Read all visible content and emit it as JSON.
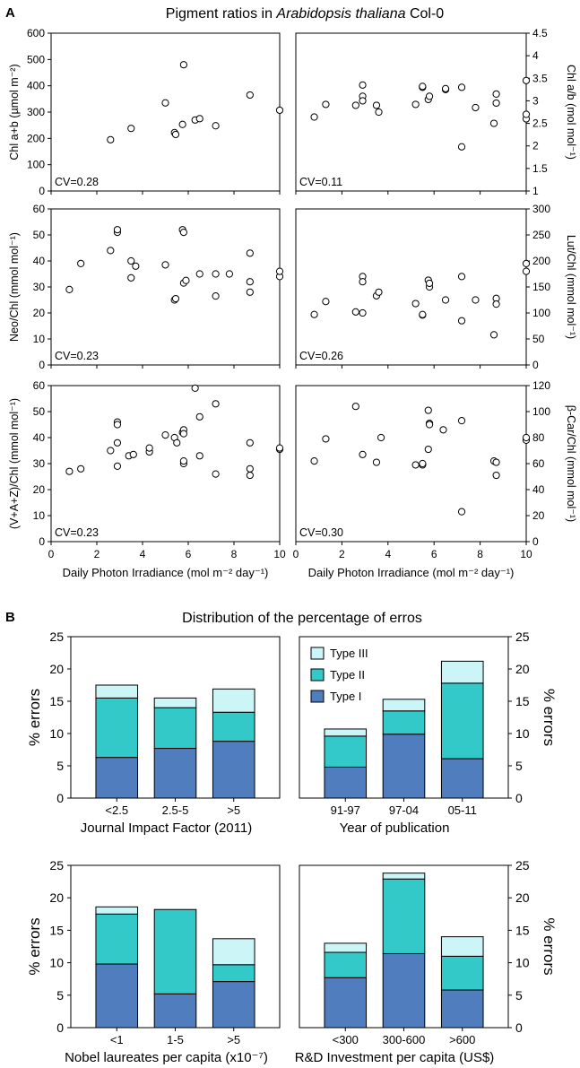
{
  "panel_a": {
    "letter": "A",
    "title_pre": "Pigment ratios in ",
    "title_italic": "Arabidopsis thaliana",
    "title_post": " Col-0",
    "xlabel": "Daily Photon Irradiance (mol m⁻² day⁻¹)"
  },
  "panel_b": {
    "letter": "B",
    "title": "Distribution of the percentage of erros",
    "ylabel": "% errors",
    "legend": [
      "Type III",
      "Type II",
      "Type I"
    ]
  },
  "colors": {
    "type1": "#4f7dbd",
    "type2": "#33c9c9",
    "type3": "#ccf5f8"
  },
  "chart_data": [
    {
      "type": "scatter",
      "ylabel": "Chl a+b (µmol m⁻²)",
      "xlim": [
        0,
        10
      ],
      "ylim": [
        0,
        600
      ],
      "yticks": [
        0,
        100,
        200,
        300,
        400,
        500,
        600
      ],
      "cv": "CV=0.28",
      "x": [
        2.6,
        3.5,
        5.0,
        5.4,
        5.45,
        5.75,
        5.8,
        6.3,
        6.5,
        7.2,
        8.7,
        10.0
      ],
      "y": [
        195,
        238,
        335,
        222,
        215,
        253,
        480,
        270,
        275,
        248,
        365,
        307
      ]
    },
    {
      "type": "scatter",
      "ylabel": "Chl a/b (mol mol⁻¹)",
      "xlim": [
        0,
        10
      ],
      "ylim": [
        1,
        4.5
      ],
      "yticks": [
        1,
        1.5,
        2,
        2.5,
        3,
        3.5,
        4,
        4.5
      ],
      "cv": "CV=0.11",
      "x": [
        0.8,
        1.3,
        2.6,
        2.9,
        2.9,
        2.9,
        3.5,
        3.6,
        5.2,
        5.5,
        5.5,
        5.75,
        5.8,
        6.5,
        6.5,
        7.2,
        7.2,
        7.8,
        8.6,
        8.7,
        8.7,
        10.0,
        10.0,
        10.0
      ],
      "y": [
        2.64,
        2.92,
        2.9,
        3.35,
        3.1,
        3.0,
        2.9,
        2.75,
        2.92,
        3.3,
        3.32,
        3.03,
        3.1,
        3.25,
        3.27,
        3.3,
        1.98,
        2.85,
        2.5,
        3.15,
        2.95,
        3.45,
        2.6,
        2.7
      ]
    },
    {
      "type": "scatter",
      "ylabel": "Neo/Chl (mmol mol⁻¹)",
      "xlim": [
        0,
        10
      ],
      "ylim": [
        0,
        60
      ],
      "yticks": [
        0,
        10,
        20,
        30,
        40,
        50,
        60
      ],
      "cv": "CV=0.23",
      "x": [
        0.8,
        1.3,
        2.6,
        2.9,
        2.9,
        3.5,
        3.5,
        3.7,
        5.0,
        5.4,
        5.45,
        5.75,
        5.8,
        5.8,
        5.9,
        6.5,
        7.2,
        7.2,
        7.8,
        8.7,
        8.7,
        8.7,
        10.0,
        10.0
      ],
      "y": [
        29,
        39,
        44,
        51,
        52,
        40,
        33.5,
        38,
        38.5,
        25,
        25.5,
        52,
        51,
        31.5,
        32.5,
        35,
        26.5,
        35,
        35,
        43,
        32,
        28,
        34,
        36
      ]
    },
    {
      "type": "scatter",
      "ylabel": "Lut/Chl (mmol mol⁻¹)",
      "xlim": [
        0,
        10
      ],
      "ylim": [
        0,
        300
      ],
      "yticks": [
        0,
        50,
        100,
        150,
        200,
        250,
        300
      ],
      "cv": "CV=0.26",
      "x": [
        0.8,
        1.3,
        2.6,
        2.9,
        2.9,
        2.9,
        3.5,
        3.6,
        5.2,
        5.5,
        5.5,
        5.75,
        5.8,
        5.8,
        6.5,
        7.2,
        7.2,
        7.8,
        8.6,
        8.7,
        8.7,
        10.0,
        10.0
      ],
      "y": [
        97,
        122,
        102,
        170,
        160,
        100,
        133,
        140,
        118,
        96,
        97,
        163,
        150,
        157,
        125,
        170,
        85,
        125,
        58,
        128,
        117,
        195,
        180
      ]
    },
    {
      "type": "scatter",
      "ylabel": "(V+A+Z)/Chl (mmol mol⁻¹)",
      "xlim": [
        0,
        10
      ],
      "ylim": [
        0,
        60
      ],
      "yticks": [
        0,
        10,
        20,
        30,
        40,
        50,
        60
      ],
      "cv": "CV=0.23",
      "x": [
        0.8,
        1.3,
        2.6,
        2.9,
        2.9,
        2.9,
        2.9,
        3.4,
        3.6,
        4.3,
        4.3,
        5.0,
        5.4,
        5.5,
        5.75,
        5.8,
        5.8,
        5.8,
        5.8,
        6.3,
        6.5,
        6.5,
        7.2,
        7.2,
        8.7,
        8.7,
        8.7,
        10.0,
        10.0
      ],
      "y": [
        27,
        28,
        35,
        46,
        45,
        38,
        29,
        33,
        33.5,
        34.5,
        36,
        41,
        40,
        38,
        42,
        43,
        30,
        31,
        41.5,
        59,
        48,
        33,
        53,
        26,
        38,
        28,
        25.5,
        35.5,
        36
      ]
    },
    {
      "type": "scatter",
      "ylabel": "β-Car/Chl (mmol mol⁻¹)",
      "xlim": [
        0,
        10
      ],
      "ylim": [
        0,
        120
      ],
      "yticks": [
        0,
        20,
        40,
        60,
        80,
        100,
        120
      ],
      "cv": "CV=0.30",
      "x": [
        0.8,
        1.3,
        2.6,
        2.9,
        3.5,
        3.7,
        5.2,
        5.5,
        5.5,
        5.75,
        5.8,
        5.8,
        5.75,
        6.4,
        7.2,
        7.2,
        8.6,
        8.7,
        8.7,
        10.0,
        10.0
      ],
      "y": [
        62,
        79,
        104,
        67,
        61,
        80,
        59,
        59,
        60,
        101,
        91,
        90,
        71,
        86,
        93,
        23,
        62,
        51,
        61,
        78,
        80
      ]
    },
    {
      "type": "bar",
      "stacked": true,
      "xlabel": "Journal Impact Factor (2011)",
      "categories": [
        "<2.5",
        "2.5-5",
        ">5"
      ],
      "ylim": [
        0,
        25
      ],
      "yticks": [
        0,
        5,
        10,
        15,
        20,
        25
      ],
      "series": [
        {
          "name": "Type I",
          "values": [
            6.3,
            7.7,
            8.8
          ]
        },
        {
          "name": "Type II",
          "values": [
            9.2,
            6.3,
            4.5
          ]
        },
        {
          "name": "Type III",
          "values": [
            2.0,
            1.5,
            3.6
          ]
        }
      ]
    },
    {
      "type": "bar",
      "stacked": true,
      "xlabel": "Year of publication",
      "categories": [
        "91-97",
        "97-04",
        "05-11"
      ],
      "ylim": [
        0,
        25
      ],
      "yticks": [
        0,
        5,
        10,
        15,
        20,
        25
      ],
      "series": [
        {
          "name": "Type I",
          "values": [
            4.8,
            9.9,
            6.1
          ]
        },
        {
          "name": "Type II",
          "values": [
            4.8,
            3.6,
            11.7
          ]
        },
        {
          "name": "Type III",
          "values": [
            1.1,
            1.8,
            3.4
          ]
        }
      ]
    },
    {
      "type": "bar",
      "stacked": true,
      "xlabel": "Nobel laureates per capita (x10⁻⁷)",
      "categories": [
        "<1",
        "1-5",
        ">5"
      ],
      "ylim": [
        0,
        25
      ],
      "yticks": [
        0,
        5,
        10,
        15,
        20,
        25
      ],
      "series": [
        {
          "name": "Type I",
          "values": [
            9.8,
            5.2,
            7.1
          ]
        },
        {
          "name": "Type II",
          "values": [
            7.7,
            13.0,
            2.6
          ]
        },
        {
          "name": "Type III",
          "values": [
            1.1,
            0,
            4.0
          ]
        }
      ]
    },
    {
      "type": "bar",
      "stacked": true,
      "xlabel": "R&D Investment per capita (US$)",
      "categories": [
        "<300",
        "300-600",
        ">600"
      ],
      "ylim": [
        0,
        25
      ],
      "yticks": [
        0,
        5,
        10,
        15,
        20,
        25
      ],
      "series": [
        {
          "name": "Type I",
          "values": [
            7.7,
            11.4,
            5.8
          ]
        },
        {
          "name": "Type II",
          "values": [
            3.9,
            11.5,
            5.2
          ]
        },
        {
          "name": "Type III",
          "values": [
            1.4,
            0.9,
            3.0
          ]
        }
      ]
    }
  ]
}
